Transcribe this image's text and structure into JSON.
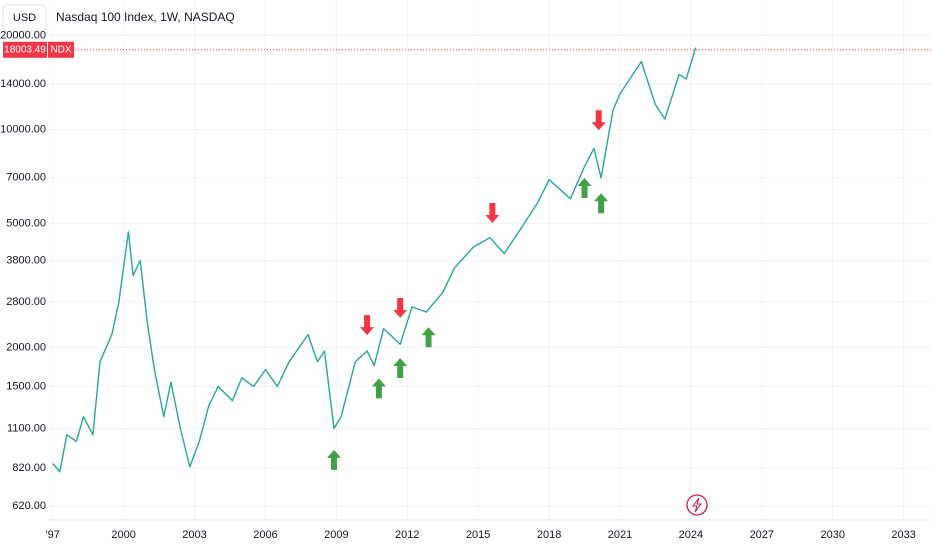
{
  "chart_data": {
    "type": "line",
    "currency": "USD",
    "title": "Nasdaq 100 Index, 1W, NASDAQ",
    "symbol": "NDX",
    "last_price": {
      "value": 18003.49,
      "label": "18003.49"
    },
    "log_scale": true,
    "grid": true,
    "xlim": [
      1996.8,
      2034.2
    ],
    "ylim": [
      560,
      26000
    ],
    "xticks": [
      {
        "value": 1997,
        "label": "'97"
      },
      2000,
      2003,
      2006,
      2009,
      2012,
      2015,
      2018,
      2021,
      2024,
      2027,
      2030,
      2033
    ],
    "yticks": [
      {
        "value": 20000,
        "label": "20000.00"
      },
      {
        "value": 14000,
        "label": "14000.00"
      },
      {
        "value": 10000,
        "label": "10000.00"
      },
      {
        "value": 7000,
        "label": "7000.00"
      },
      {
        "value": 5000,
        "label": "5000.00"
      },
      {
        "value": 3800,
        "label": "3800.00"
      },
      {
        "value": 2800,
        "label": "2800.00"
      },
      {
        "value": 2000,
        "label": "2000.00"
      },
      {
        "value": 1500,
        "label": "1500.00"
      },
      {
        "value": 1100,
        "label": "1100.00"
      },
      {
        "value": 820,
        "label": "820.00"
      },
      {
        "value": 620,
        "label": "620.00"
      }
    ],
    "series": [
      {
        "name": "NDX",
        "color": "#26a69a",
        "x": [
          1997.0,
          1997.3,
          1997.6,
          1998.0,
          1998.3,
          1998.7,
          1999.0,
          1999.5,
          1999.8,
          2000.2,
          2000.4,
          2000.7,
          2001.0,
          2001.3,
          2001.7,
          2002.0,
          2002.4,
          2002.8,
          2003.2,
          2003.6,
          2004.0,
          2004.6,
          2005.0,
          2005.5,
          2006.0,
          2006.5,
          2007.0,
          2007.8,
          2008.2,
          2008.5,
          2008.9,
          2009.2,
          2009.8,
          2010.3,
          2010.6,
          2011.0,
          2011.7,
          2012.2,
          2012.8,
          2013.5,
          2014.0,
          2014.8,
          2015.5,
          2016.1,
          2016.8,
          2017.5,
          2018.0,
          2018.9,
          2019.5,
          2019.9,
          2020.2,
          2020.7,
          2021.0,
          2021.9,
          2022.5,
          2022.9,
          2023.5,
          2023.8,
          2024.2
        ],
        "values": [
          850,
          800,
          1050,
          1000,
          1200,
          1050,
          1800,
          2200,
          2800,
          4700,
          3400,
          3800,
          2400,
          1700,
          1200,
          1550,
          1100,
          830,
          1000,
          1300,
          1500,
          1350,
          1600,
          1500,
          1700,
          1500,
          1800,
          2200,
          1800,
          1950,
          1100,
          1200,
          1800,
          1950,
          1750,
          2300,
          2050,
          2700,
          2600,
          3000,
          3600,
          4200,
          4500,
          4000,
          4800,
          5800,
          6900,
          6000,
          7600,
          8700,
          7000,
          11500,
          13000,
          16500,
          12000,
          10800,
          15000,
          14500,
          18300
        ]
      }
    ],
    "annotations": [
      {
        "direction": "up",
        "x": 2008.9,
        "y": 873,
        "color": "#43a047"
      },
      {
        "direction": "up",
        "x": 2010.8,
        "y": 1480,
        "color": "#43a047"
      },
      {
        "direction": "up",
        "x": 2011.7,
        "y": 1720,
        "color": "#43a047"
      },
      {
        "direction": "up",
        "x": 2012.9,
        "y": 2160,
        "color": "#43a047"
      },
      {
        "direction": "up",
        "x": 2019.5,
        "y": 6490,
        "color": "#43a047"
      },
      {
        "direction": "up",
        "x": 2020.2,
        "y": 5800,
        "color": "#43a047"
      },
      {
        "direction": "down",
        "x": 2010.3,
        "y": 2360,
        "color": "#f23645"
      },
      {
        "direction": "down",
        "x": 2011.7,
        "y": 2680,
        "color": "#f23645"
      },
      {
        "direction": "down",
        "x": 2015.6,
        "y": 5400,
        "color": "#f23645"
      },
      {
        "direction": "down",
        "x": 2020.1,
        "y": 10700,
        "color": "#f23645"
      }
    ]
  }
}
